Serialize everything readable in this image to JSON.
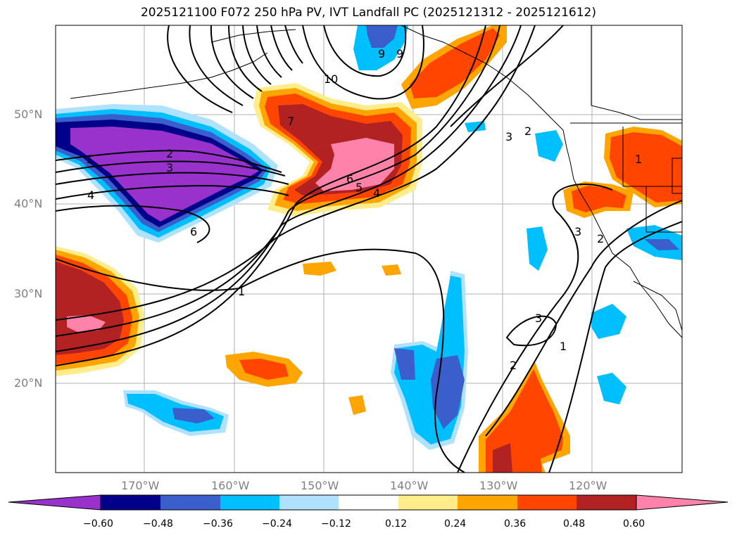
{
  "title": "2025121100 F072 250 hPa PV, IVT Landfall PC (2025121312 - 2025121612)",
  "lat_labels": [
    "50°N",
    "40°N",
    "30°N",
    "20°N"
  ],
  "lon_labels": [
    "170°W",
    "160°W",
    "150°W",
    "140°W",
    "130°W",
    "120°W"
  ],
  "colorbar": {
    "ticks": [
      "−0.60",
      "−0.48",
      "−0.36",
      "−0.24",
      "−0.12",
      "0.12",
      "0.24",
      "0.36",
      "0.48",
      "0.60"
    ],
    "colors": [
      "#9932cc",
      "#00008b",
      "#3a5fcd",
      "#00bfff",
      "#b0e2ff",
      "#ffffff",
      "#ffec8b",
      "#ffa500",
      "#ff4500",
      "#b22222",
      "#ff82ab"
    ]
  },
  "contour_labels": [
    {
      "text": "10"
    },
    {
      "text": "9"
    },
    {
      "text": "9"
    },
    {
      "text": "7"
    },
    {
      "text": "6"
    },
    {
      "text": "5"
    },
    {
      "text": "4"
    },
    {
      "text": "1"
    },
    {
      "text": "2"
    },
    {
      "text": "3"
    },
    {
      "text": "4"
    },
    {
      "text": "6"
    },
    {
      "text": "1"
    },
    {
      "text": "3"
    },
    {
      "text": "2"
    },
    {
      "text": "3"
    },
    {
      "text": "2"
    },
    {
      "text": "3"
    },
    {
      "text": "2"
    },
    {
      "text": "1"
    },
    {
      "text": "1"
    }
  ]
}
